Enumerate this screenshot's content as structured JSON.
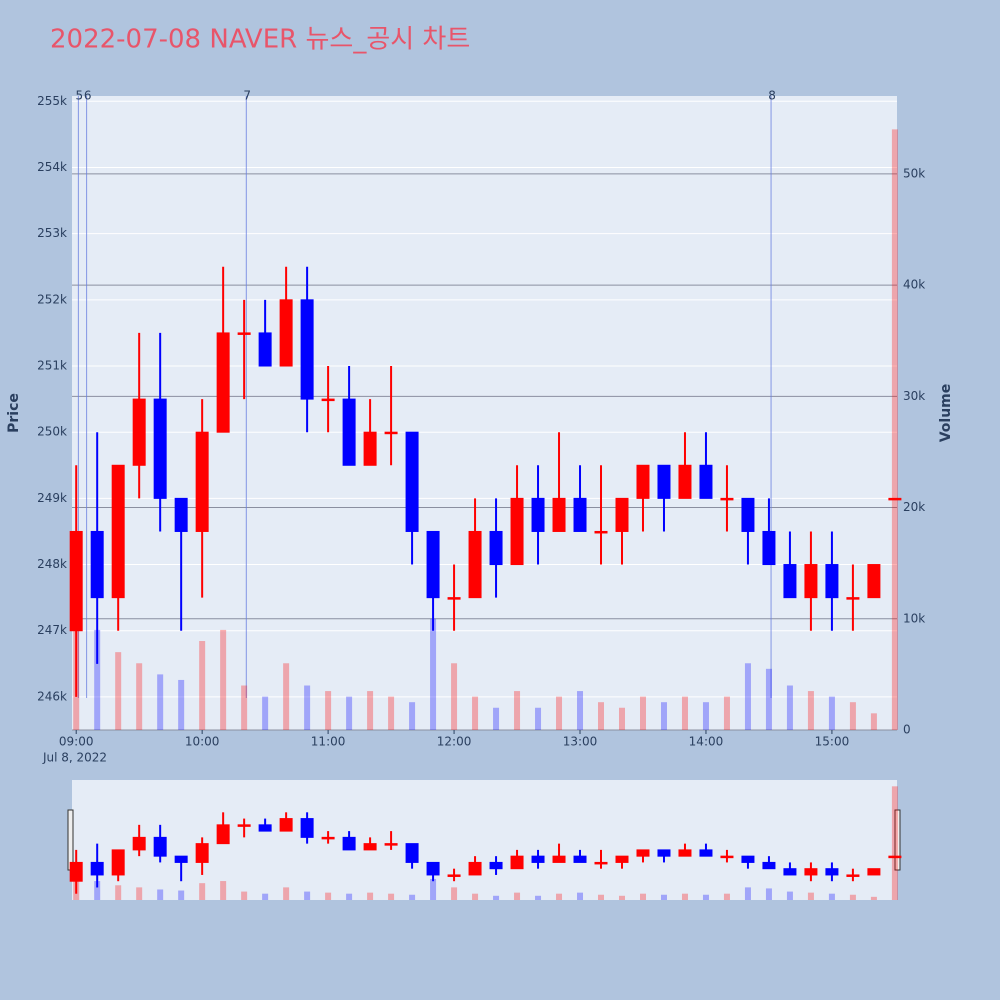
{
  "chart_data": {
    "type": "candlestick",
    "title": "2022-07-08 NAVER 뉴스_공시 차트",
    "y_title": "Price",
    "y2_title": "Volume",
    "x_date_label": "Jul 8, 2022",
    "increasing_color": "#ff0000",
    "decreasing_color": "#0000ff",
    "x": [
      "2022-07-08 09:00",
      "2022-07-08 09:10",
      "2022-07-08 09:20",
      "2022-07-08 09:30",
      "2022-07-08 09:40",
      "2022-07-08 09:50",
      "2022-07-08 10:00",
      "2022-07-08 10:10",
      "2022-07-08 10:20",
      "2022-07-08 10:30",
      "2022-07-08 10:40",
      "2022-07-08 10:50",
      "2022-07-08 11:00",
      "2022-07-08 11:10",
      "2022-07-08 11:20",
      "2022-07-08 11:30",
      "2022-07-08 11:40",
      "2022-07-08 11:50",
      "2022-07-08 12:00",
      "2022-07-08 12:10",
      "2022-07-08 12:20",
      "2022-07-08 12:30",
      "2022-07-08 12:40",
      "2022-07-08 12:50",
      "2022-07-08 13:00",
      "2022-07-08 13:10",
      "2022-07-08 13:20",
      "2022-07-08 13:30",
      "2022-07-08 13:40",
      "2022-07-08 13:50",
      "2022-07-08 14:00",
      "2022-07-08 14:10",
      "2022-07-08 14:20",
      "2022-07-08 14:30",
      "2022-07-08 14:40",
      "2022-07-08 14:50",
      "2022-07-08 15:00",
      "2022-07-08 15:10",
      "2022-07-08 15:20",
      "2022-07-08 15:30"
    ],
    "open": [
      247000,
      248500,
      247500,
      249500,
      250500,
      249000,
      248500,
      250000,
      251500,
      251500,
      251000,
      252000,
      250500,
      250500,
      249500,
      250000,
      250000,
      248500,
      247500,
      247500,
      248500,
      248000,
      249000,
      248500,
      249000,
      248500,
      248500,
      249000,
      249500,
      249000,
      249500,
      249000,
      249000,
      248500,
      248000,
      247500,
      248000,
      247500,
      247500,
      249000
    ],
    "high": [
      249500,
      250000,
      249500,
      251500,
      251500,
      249000,
      250500,
      252500,
      252000,
      252000,
      252500,
      252500,
      251000,
      251000,
      250500,
      251000,
      250000,
      248500,
      248000,
      249000,
      249000,
      249500,
      249500,
      250000,
      249500,
      249500,
      249000,
      249500,
      249500,
      250000,
      250000,
      249500,
      249000,
      249000,
      248500,
      248500,
      248500,
      248000,
      248000,
      249000
    ],
    "low": [
      246000,
      246500,
      247000,
      249000,
      248500,
      247000,
      247500,
      250000,
      250500,
      251000,
      251000,
      250000,
      250000,
      249500,
      249500,
      249500,
      248000,
      247000,
      247000,
      247500,
      247500,
      248000,
      248000,
      248500,
      248500,
      248000,
      248000,
      248500,
      248500,
      249000,
      249000,
      248500,
      248000,
      248000,
      247500,
      247000,
      247000,
      247000,
      247500,
      249000
    ],
    "close": [
      248500,
      247500,
      249500,
      250500,
      249000,
      248500,
      250000,
      251500,
      251500,
      251000,
      252000,
      250500,
      250500,
      249500,
      250000,
      250000,
      248500,
      247500,
      247500,
      248500,
      248000,
      249000,
      248500,
      249000,
      248500,
      248500,
      249000,
      249500,
      249000,
      249500,
      249000,
      249000,
      248500,
      248000,
      247500,
      248000,
      247500,
      247500,
      248000,
      249000
    ],
    "volume": [
      12000,
      9000,
      7000,
      6000,
      5000,
      4500,
      8000,
      9000,
      4000,
      3000,
      6000,
      4000,
      3500,
      3000,
      3500,
      3000,
      2500,
      10000,
      6000,
      3000,
      2000,
      3500,
      2000,
      3000,
      3500,
      2500,
      2000,
      3000,
      2500,
      3000,
      2500,
      3000,
      6000,
      5500,
      4000,
      3500,
      3000,
      2500,
      1500,
      54000
    ],
    "xlim": [
      "2022-07-08 08:58",
      "2022-07-08 15:31"
    ],
    "xticks": [
      {
        "value": "2022-07-08 09:00",
        "label": "09:00"
      },
      {
        "value": "2022-07-08 10:00",
        "label": "10:00"
      },
      {
        "value": "2022-07-08 11:00",
        "label": "11:00"
      },
      {
        "value": "2022-07-08 12:00",
        "label": "12:00"
      },
      {
        "value": "2022-07-08 13:00",
        "label": "13:00"
      },
      {
        "value": "2022-07-08 14:00",
        "label": "14:00"
      },
      {
        "value": "2022-07-08 15:00",
        "label": "15:00"
      }
    ],
    "ylim": [
      245500,
      255080
    ],
    "yticks": [
      {
        "value": 246000,
        "label": "246k"
      },
      {
        "value": 247000,
        "label": "247k"
      },
      {
        "value": 248000,
        "label": "248k"
      },
      {
        "value": 249000,
        "label": "249k"
      },
      {
        "value": 250000,
        "label": "250k"
      },
      {
        "value": 251000,
        "label": "251k"
      },
      {
        "value": 252000,
        "label": "252k"
      },
      {
        "value": 253000,
        "label": "253k"
      },
      {
        "value": 254000,
        "label": "254k"
      },
      {
        "value": 255000,
        "label": "255k"
      }
    ],
    "y2lim": [
      0,
      57000
    ],
    "y2ticks": [
      0,
      {
        "value": 10000,
        "label": "10k"
      },
      {
        "value": 20000,
        "label": "20k"
      },
      {
        "value": 30000,
        "label": "30k"
      },
      {
        "value": 40000,
        "label": "40k"
      },
      {
        "value": 50000,
        "label": "50k"
      }
    ],
    "annotations": [
      {
        "x": "2022-07-08 09:01",
        "label": "5"
      },
      {
        "x": "2022-07-08 09:05",
        "label": "6"
      },
      {
        "x": "2022-07-08 10:21",
        "label": "7"
      },
      {
        "x": "2022-07-08 14:31",
        "label": "8"
      }
    ],
    "rangeslider": true
  }
}
